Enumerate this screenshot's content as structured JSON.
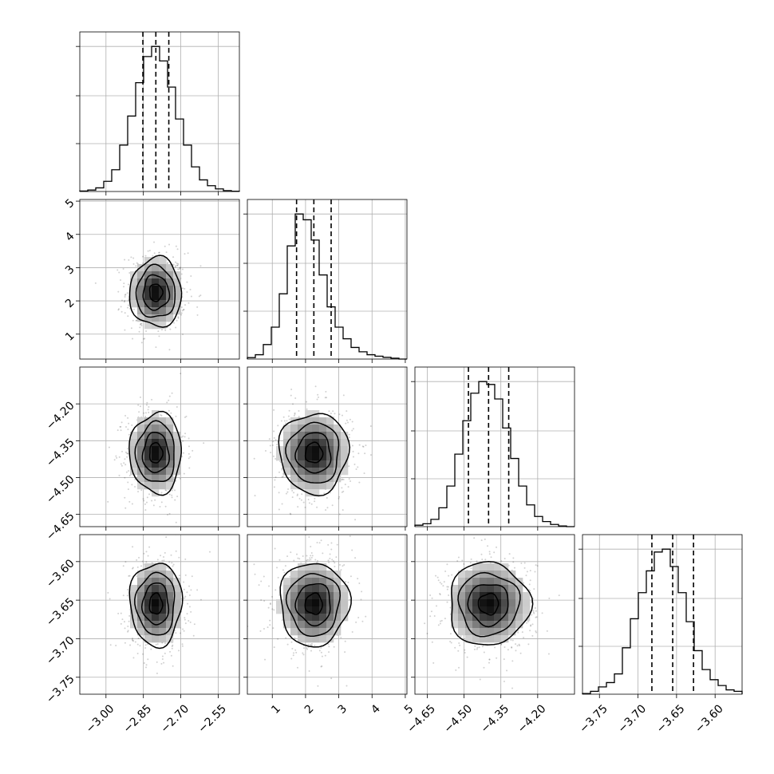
{
  "chart_data": {
    "type": "corner",
    "grid": true,
    "parameters": [
      {
        "center": -2.8,
        "sigma": 0.052,
        "quantiles": [
          -2.852,
          -2.8,
          -2.748
        ],
        "range": [
          -3.105,
          -2.465
        ],
        "ticks": [
          -3.0,
          -2.85,
          -2.7,
          -2.55
        ],
        "tick_labels": [
          "−3.00",
          "−2.85",
          "−2.70",
          "−2.55"
        ]
      },
      {
        "center": 2.25,
        "sigma": 0.52,
        "quantiles": [
          1.73,
          2.25,
          2.77
        ],
        "range": [
          0.25,
          5.05
        ],
        "ticks": [
          1,
          2,
          3,
          4,
          5
        ],
        "tick_labels": [
          "1",
          "2",
          "3",
          "4",
          "5"
        ]
      },
      {
        "center": -4.4,
        "sigma": 0.082,
        "quantiles": [
          -4.482,
          -4.4,
          -4.318
        ],
        "range": [
          -4.7,
          -4.05
        ],
        "ticks": [
          -4.65,
          -4.5,
          -4.35,
          -4.2
        ],
        "tick_labels": [
          "−4.65",
          "−4.50",
          "−4.35",
          "−4.20"
        ]
      },
      {
        "center": -3.655,
        "sigma": 0.027,
        "quantiles": [
          -3.682,
          -3.655,
          -3.628
        ],
        "range": [
          -3.772,
          -3.565
        ],
        "ticks": [
          -3.75,
          -3.7,
          -3.65,
          -3.6
        ],
        "tick_labels": [
          "−3.75",
          "−3.70",
          "−3.65",
          "−3.60"
        ]
      }
    ],
    "histograms": [
      {
        "bins": 20,
        "range": [
          -3.105,
          -2.465
        ],
        "counts": [
          0.003,
          0.01,
          0.025,
          0.07,
          0.15,
          0.32,
          0.52,
          0.75,
          0.93,
          1.0,
          0.9,
          0.72,
          0.5,
          0.32,
          0.17,
          0.08,
          0.04,
          0.018,
          0.006,
          0.002
        ]
      },
      {
        "bins": 20,
        "range": [
          0.25,
          5.05
        ],
        "counts": [
          0.01,
          0.03,
          0.1,
          0.22,
          0.45,
          0.78,
          1.0,
          0.96,
          0.82,
          0.58,
          0.36,
          0.22,
          0.14,
          0.08,
          0.05,
          0.03,
          0.02,
          0.012,
          0.006,
          0.0
        ]
      },
      {
        "bins": 20,
        "range": [
          -4.7,
          -4.05
        ],
        "counts": [
          0.01,
          0.02,
          0.05,
          0.13,
          0.28,
          0.5,
          0.73,
          0.92,
          1.0,
          0.98,
          0.88,
          0.68,
          0.47,
          0.28,
          0.15,
          0.07,
          0.035,
          0.015,
          0.005,
          0.0
        ]
      },
      {
        "bins": 20,
        "range": [
          -3.772,
          -3.565
        ],
        "counts": [
          0.005,
          0.02,
          0.05,
          0.08,
          0.14,
          0.32,
          0.52,
          0.7,
          0.85,
          0.98,
          1.0,
          0.88,
          0.7,
          0.5,
          0.3,
          0.17,
          0.1,
          0.06,
          0.03,
          0.02
        ]
      }
    ],
    "contour_levels_sigma": [
      0.5,
      1.0,
      1.5,
      2.0
    ]
  }
}
